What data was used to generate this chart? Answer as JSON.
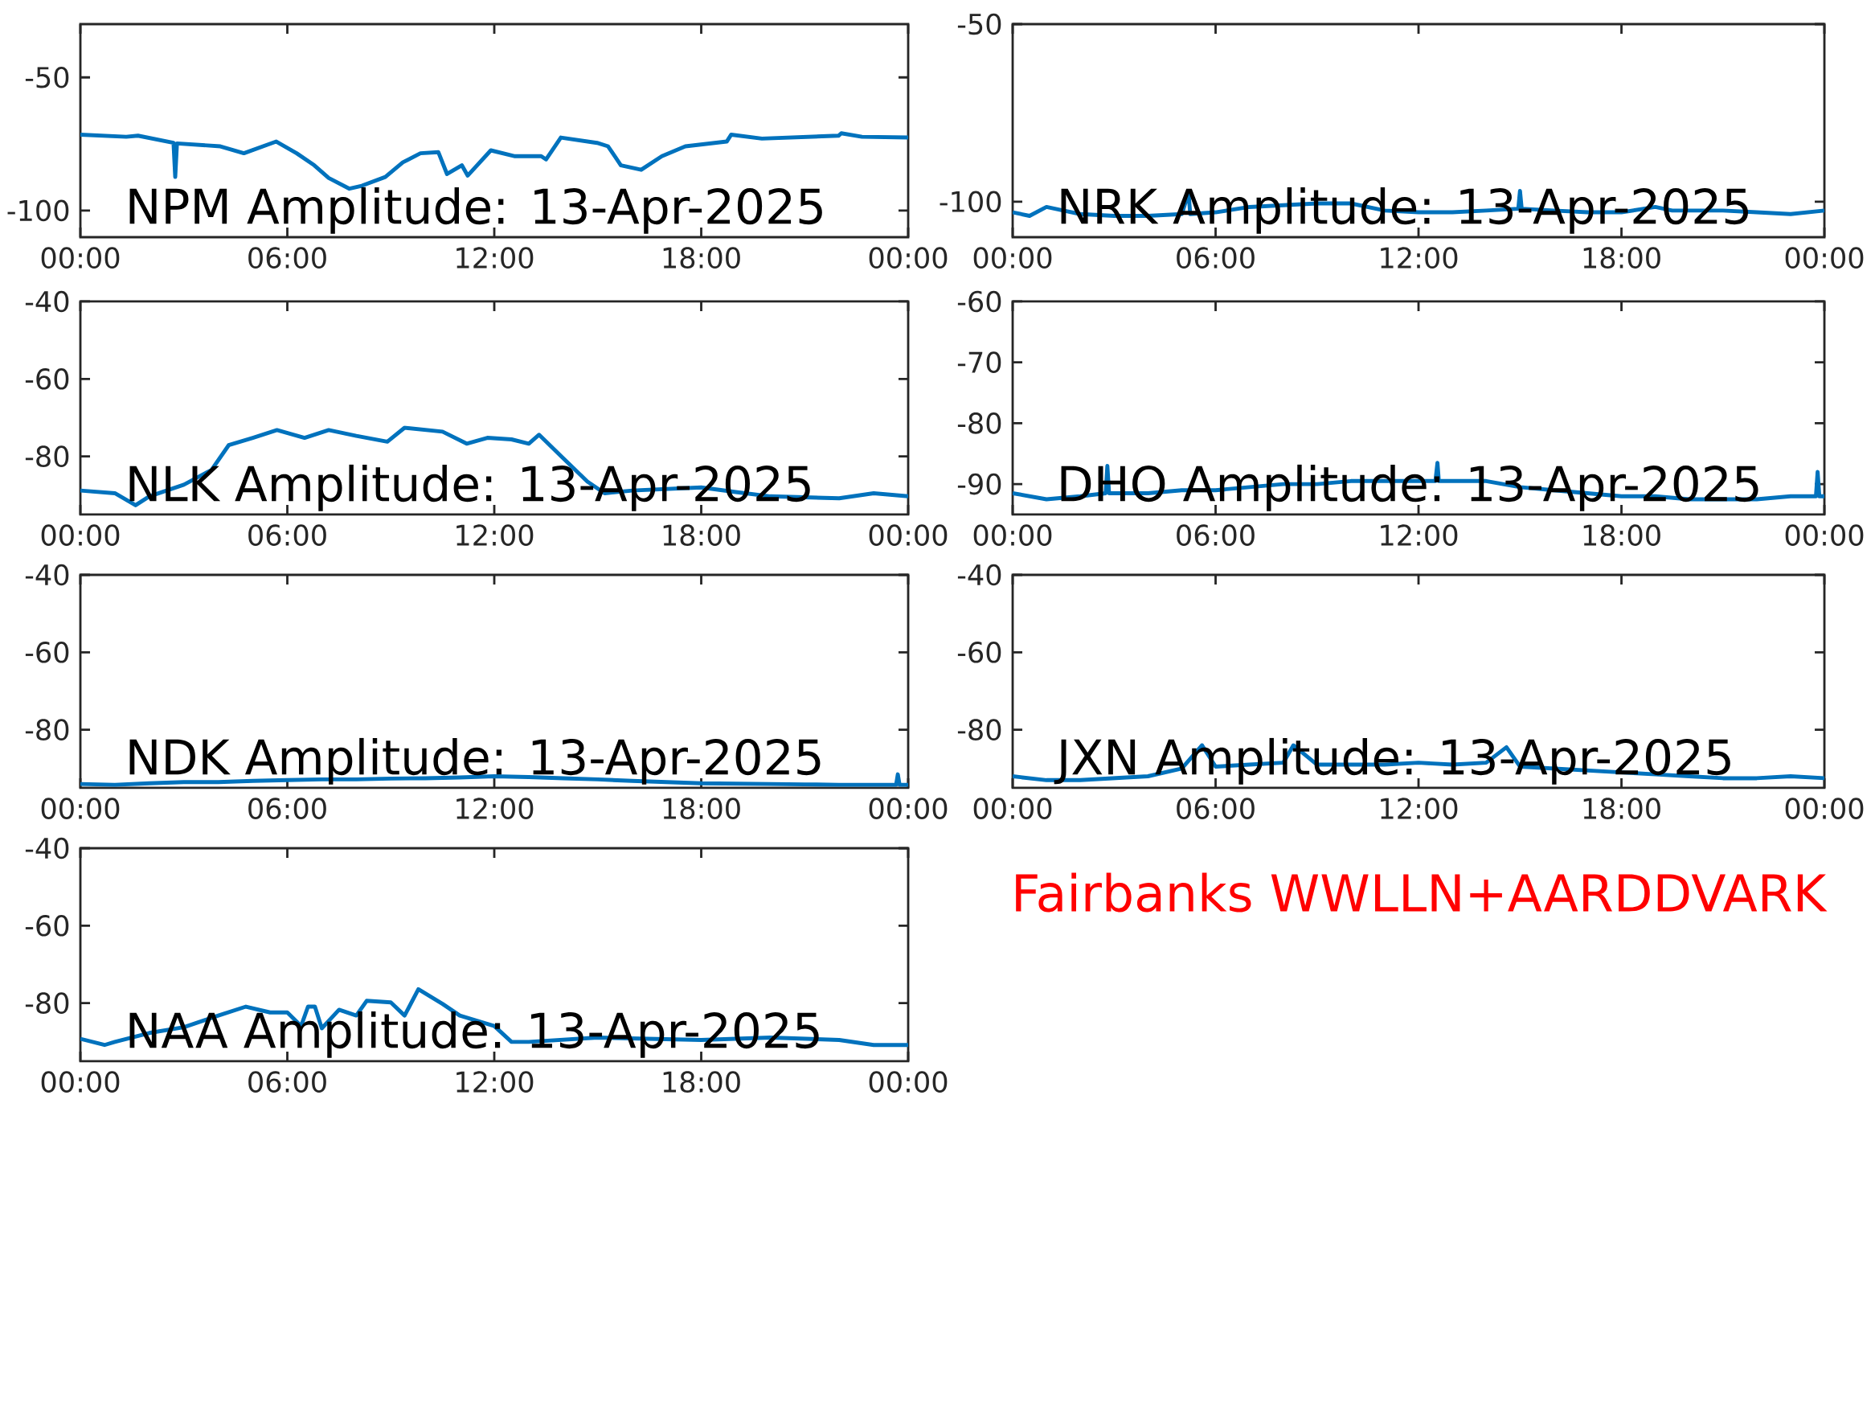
{
  "chart_data": [
    {
      "type": "line",
      "title": "NPM Amplitude: 13-Apr-2025",
      "color": "#0072bd",
      "xlim": [
        0,
        24
      ],
      "ylim": [
        -110,
        -30
      ],
      "yticks": [
        -100,
        -50
      ],
      "xticks": [
        {
          "value": 0,
          "label": "00:00"
        },
        {
          "value": 6,
          "label": "06:00"
        },
        {
          "value": 12,
          "label": "12:00"
        },
        {
          "value": 18,
          "label": "18:00"
        },
        {
          "value": 24,
          "label": "00:00"
        }
      ],
      "x": [
        0,
        1.33,
        1.67,
        2.7,
        2.75,
        2.8,
        4.06,
        4.74,
        5.68,
        6.27,
        6.78,
        7.2,
        7.8,
        8.16,
        8.84,
        9.35,
        9.86,
        10.38,
        10.63,
        11.06,
        11.23,
        11.9,
        12.6,
        13.36,
        13.5,
        13.93,
        14.98,
        15.3,
        15.67,
        16.26,
        16.86,
        17.54,
        18.74,
        18.87,
        19.76,
        21.98,
        22.06,
        22.66,
        24
      ],
      "values": [
        -71.5,
        -72.3,
        -71.9,
        -74.6,
        -87.4,
        -74.8,
        -75.9,
        -78.5,
        -74.1,
        -78.5,
        -83,
        -87.8,
        -91.8,
        -90.7,
        -87.4,
        -81.9,
        -78.5,
        -78.1,
        -86.3,
        -83,
        -86.9,
        -77.4,
        -79.6,
        -79.6,
        -80.8,
        -72.6,
        -74.6,
        -75.9,
        -83,
        -84.7,
        -79.6,
        -75.9,
        -74.1,
        -71.5,
        -73,
        -71.9,
        -71,
        -72.3,
        -72.6
      ]
    },
    {
      "type": "line",
      "title": "NRK Amplitude: 13-Apr-2025",
      "color": "#0072bd",
      "xlim": [
        0,
        24
      ],
      "ylim": [
        -110,
        -50
      ],
      "yticks": [
        -100,
        -50
      ],
      "xticks": [
        {
          "value": 0,
          "label": "00:00"
        },
        {
          "value": 6,
          "label": "06:00"
        },
        {
          "value": 12,
          "label": "12:00"
        },
        {
          "value": 18,
          "label": "18:00"
        },
        {
          "value": 24,
          "label": "00:00"
        }
      ],
      "x": [
        0,
        0.5,
        1,
        1.5,
        2,
        3,
        4,
        5,
        5.2,
        5.25,
        6,
        7,
        8,
        9,
        10,
        11,
        12,
        13,
        14,
        14.95,
        15,
        15.05,
        16,
        17,
        18,
        19,
        19.5,
        20,
        21,
        22,
        23,
        24
      ],
      "values": [
        -103,
        -104,
        -101.5,
        -102.5,
        -103.5,
        -104,
        -104,
        -103.5,
        -97.5,
        -103.5,
        -103,
        -101.5,
        -101,
        -100.5,
        -100.5,
        -102.5,
        -103,
        -103,
        -102.5,
        -102,
        -97,
        -102,
        -102.5,
        -103,
        -103,
        -101.5,
        -102.5,
        -102.5,
        -102.5,
        -103,
        -103.5,
        -102.5
      ]
    },
    {
      "type": "line",
      "title": "NLK Amplitude: 13-Apr-2025",
      "color": "#0072bd",
      "xlim": [
        0,
        24
      ],
      "ylim": [
        -95,
        -40
      ],
      "yticks": [
        -80,
        -60,
        -40
      ],
      "xticks": [
        {
          "value": 0,
          "label": "00:00"
        },
        {
          "value": 6,
          "label": "06:00"
        },
        {
          "value": 12,
          "label": "12:00"
        },
        {
          "value": 18,
          "label": "18:00"
        },
        {
          "value": 24,
          "label": "00:00"
        }
      ],
      "x": [
        0,
        1,
        1.6,
        2,
        3,
        3.8,
        4.3,
        5,
        5.7,
        6.5,
        7.2,
        8,
        8.9,
        9.4,
        10.5,
        11.2,
        11.8,
        12.5,
        13,
        13.3,
        14,
        14.7,
        15.2,
        16,
        18,
        19,
        20,
        22,
        23,
        24
      ],
      "values": [
        -88.8,
        -89.5,
        -92.6,
        -90.3,
        -87.3,
        -83.5,
        -77.1,
        -75.2,
        -73.2,
        -75.2,
        -73.2,
        -74.7,
        -76.2,
        -72.6,
        -73.6,
        -76.7,
        -75.2,
        -75.6,
        -76.7,
        -74.4,
        -80.5,
        -86.5,
        -89.5,
        -88.8,
        -88,
        -89.2,
        -90.3,
        -90.8,
        -89.5,
        -90.3
      ]
    },
    {
      "type": "line",
      "title": "DHO Amplitude: 13-Apr-2025",
      "color": "#0072bd",
      "xlim": [
        0,
        24
      ],
      "ylim": [
        -95,
        -60
      ],
      "yticks": [
        -90,
        -80,
        -70,
        -60
      ],
      "xticks": [
        {
          "value": 0,
          "label": "00:00"
        },
        {
          "value": 6,
          "label": "06:00"
        },
        {
          "value": 12,
          "label": "12:00"
        },
        {
          "value": 18,
          "label": "18:00"
        },
        {
          "value": 24,
          "label": "00:00"
        }
      ],
      "x": [
        0,
        1,
        2,
        2.75,
        2.8,
        2.85,
        4,
        5,
        6,
        7,
        8,
        9,
        10,
        11,
        12,
        12.5,
        12.56,
        12.6,
        13,
        14,
        15,
        16,
        17,
        18,
        19,
        20,
        21,
        22,
        23,
        23.75,
        23.8,
        23.85,
        24
      ],
      "values": [
        -91.5,
        -92.5,
        -92,
        -91.5,
        -87,
        -91.5,
        -91.5,
        -91,
        -91,
        -90.5,
        -90,
        -90,
        -89.5,
        -89.5,
        -89.5,
        -89.5,
        -86.5,
        -89.5,
        -89.5,
        -89.5,
        -90.5,
        -91,
        -91.5,
        -92,
        -92,
        -92.5,
        -92.5,
        -92.5,
        -92,
        -92,
        -88,
        -92,
        -92
      ]
    },
    {
      "type": "line",
      "title": "NDK Amplitude: 13-Apr-2025",
      "color": "#0072bd",
      "xlim": [
        0,
        24
      ],
      "ylim": [
        -95,
        -40
      ],
      "yticks": [
        -80,
        -60,
        -40
      ],
      "xticks": [
        {
          "value": 0,
          "label": "00:00"
        },
        {
          "value": 6,
          "label": "06:00"
        },
        {
          "value": 12,
          "label": "12:00"
        },
        {
          "value": 18,
          "label": "18:00"
        },
        {
          "value": 24,
          "label": "00:00"
        }
      ],
      "x": [
        0,
        1,
        2,
        3,
        4,
        5,
        6,
        7,
        8,
        9,
        10,
        11,
        12,
        13,
        14,
        15,
        16,
        17,
        18,
        19,
        20,
        21,
        22,
        23,
        23.65,
        23.7,
        23.75,
        24
      ],
      "values": [
        -94,
        -94.2,
        -93.8,
        -93.5,
        -93.5,
        -93.2,
        -93,
        -92.8,
        -92.8,
        -92.6,
        -92.5,
        -92.3,
        -92,
        -92.2,
        -92.5,
        -92.8,
        -93.2,
        -93.5,
        -93.8,
        -93.9,
        -94,
        -94.1,
        -94.2,
        -94.2,
        -94.2,
        -91.5,
        -94.2,
        -94.2
      ]
    },
    {
      "type": "line",
      "title": "JXN Amplitude: 13-Apr-2025",
      "color": "#0072bd",
      "xlim": [
        0,
        24
      ],
      "ylim": [
        -95,
        -40
      ],
      "yticks": [
        -80,
        -60,
        -40
      ],
      "xticks": [
        {
          "value": 0,
          "label": "00:00"
        },
        {
          "value": 6,
          "label": "06:00"
        },
        {
          "value": 12,
          "label": "12:00"
        },
        {
          "value": 18,
          "label": "18:00"
        },
        {
          "value": 24,
          "label": "00:00"
        }
      ],
      "x": [
        0,
        1,
        2,
        3,
        4,
        5,
        5.6,
        6,
        7,
        8,
        8.3,
        9,
        10,
        11,
        12,
        13,
        14,
        14.6,
        15,
        16,
        17,
        18,
        19,
        20,
        21,
        22,
        23,
        24
      ],
      "values": [
        -92,
        -93,
        -93,
        -92.5,
        -92,
        -90,
        -84,
        -89.5,
        -89,
        -88.5,
        -84,
        -89,
        -89,
        -89,
        -88.5,
        -89,
        -88.5,
        -84.5,
        -89.5,
        -90,
        -90.5,
        -91,
        -91.5,
        -92,
        -92.5,
        -92.5,
        -92,
        -92.5
      ]
    },
    {
      "type": "line",
      "title": "NAA Amplitude: 13-Apr-2025",
      "color": "#0072bd",
      "xlim": [
        0,
        24
      ],
      "ylim": [
        -95,
        -40
      ],
      "yticks": [
        -80,
        -60,
        -40
      ],
      "xticks": [
        {
          "value": 0,
          "label": "00:00"
        },
        {
          "value": 6,
          "label": "06:00"
        },
        {
          "value": 12,
          "label": "12:00"
        },
        {
          "value": 18,
          "label": "18:00"
        },
        {
          "value": 24,
          "label": "00:00"
        }
      ],
      "x": [
        0,
        0.7,
        1,
        2,
        3,
        4,
        4.8,
        5.5,
        6,
        6.4,
        6.6,
        6.8,
        7,
        7.5,
        8,
        8.3,
        9,
        9.4,
        9.8,
        10.5,
        11,
        12,
        12.5,
        13,
        15,
        18,
        20,
        22,
        23,
        24
      ],
      "values": [
        -89.2,
        -90.8,
        -90,
        -87.7,
        -86.2,
        -83.2,
        -80.9,
        -82.4,
        -82.4,
        -85.9,
        -80.9,
        -80.9,
        -86.5,
        -81.7,
        -83.2,
        -79.4,
        -79.8,
        -83.2,
        -76.4,
        -80.2,
        -83.2,
        -85.9,
        -90,
        -90,
        -88.9,
        -89.5,
        -88.9,
        -89.5,
        -90.8,
        -90.8
      ]
    },
    {
      "type": "other",
      "title": "Fairbanks WWLLN+AARDDVARK"
    }
  ]
}
